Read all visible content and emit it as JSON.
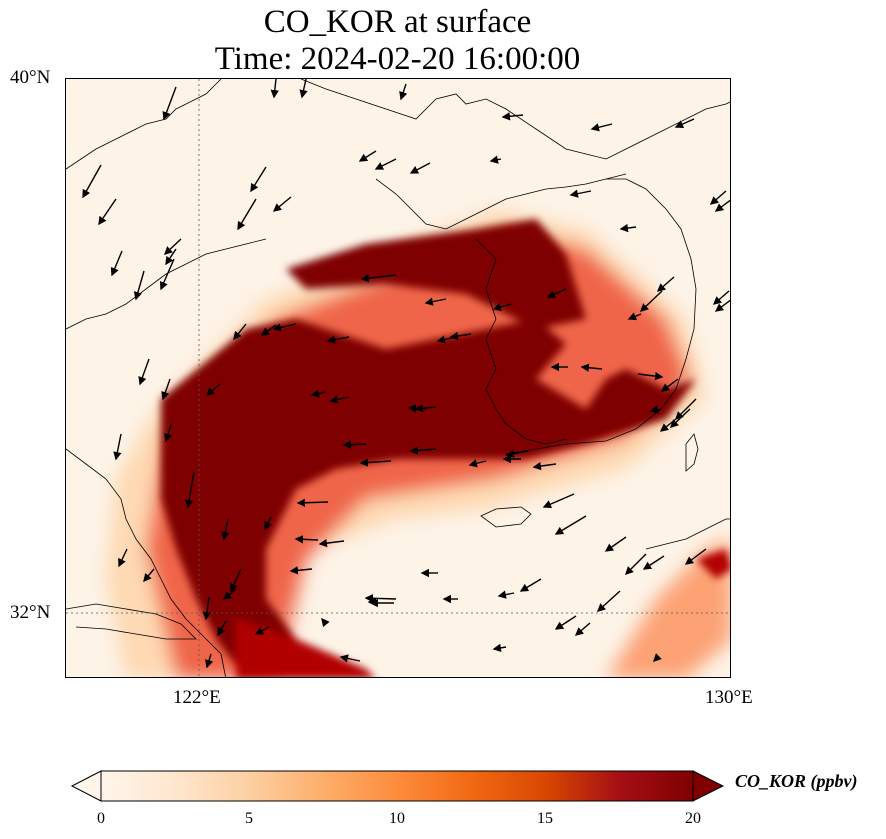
{
  "figure": {
    "title_line1": "CO_KOR at surface",
    "title_line2": "Time: 2024-02-20 16:00:00"
  },
  "map": {
    "lat_labels": [
      "40°N",
      "32°N"
    ],
    "lon_labels": [
      "122°E",
      "130°E"
    ],
    "extent": {
      "lon_min": 120,
      "lon_max": 130,
      "lat_min": 31,
      "lat_max": 40
    },
    "gridlines": "dotted"
  },
  "colorbar": {
    "label": "CO_KOR (ppbv)",
    "ticks": [
      "0",
      "5",
      "10",
      "15",
      "20"
    ],
    "min": 0,
    "max": 20,
    "extend": "both",
    "colormap": [
      "#fff5eb",
      "#fee6ce",
      "#fdd0a2",
      "#fdae6b",
      "#fd8d3c",
      "#f16913",
      "#d94801",
      "#a50f15",
      "#7f0000"
    ]
  }
}
